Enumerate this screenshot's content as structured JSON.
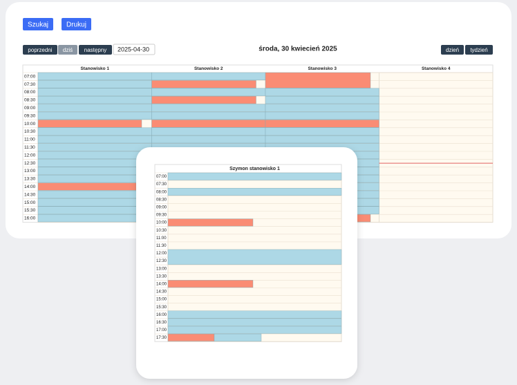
{
  "toolbar": {
    "search": "Szukaj",
    "print": "Drukuj",
    "prev": "poprzedni",
    "today": "dziś",
    "next": "następny",
    "date": "2025-04-30",
    "heading": "środa, 30 kwiecień 2025",
    "day": "dzień",
    "week": "tydzień"
  },
  "calendar": {
    "columns": [
      "Stanowisko 1",
      "Stanowisko 2",
      "Stanowisko 3",
      "Stanowisko 4"
    ],
    "times": [
      "07:00",
      "07:30",
      "08:00",
      "08:30",
      "09:00",
      "09:30",
      "10:00",
      "10:30",
      "11:00",
      "11:30",
      "12:00",
      "12:30",
      "13:00",
      "13:30",
      "14:00",
      "14:30",
      "15:00",
      "15:30",
      "16:00"
    ]
  },
  "popup": {
    "title": "Szymon stanowisko 1",
    "times": [
      "07:00",
      "07:30",
      "08:00",
      "08:30",
      "09:00",
      "09:30",
      "10:00",
      "10:30",
      "11:00",
      "11:30",
      "12:00",
      "12:30",
      "13:00",
      "13:30",
      "14:00",
      "14:30",
      "15:00",
      "15:30",
      "16:00",
      "16:30",
      "17:00",
      "17:30"
    ]
  }
}
